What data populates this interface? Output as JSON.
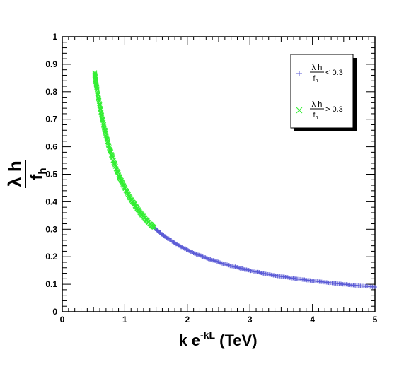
{
  "chart_data": {
    "type": "scatter",
    "xlabel": {
      "base": "k e",
      "sup": "-kL",
      "unit": " (TeV)"
    },
    "ylabel": {
      "top": "λ h",
      "bottom": "f",
      "sub": "h"
    },
    "xlim": [
      0,
      5
    ],
    "ylim": [
      0,
      1
    ],
    "x_ticks": [
      "0",
      "1",
      "2",
      "3",
      "4",
      "5"
    ],
    "y_ticks": [
      "0",
      "0.1",
      "0.2",
      "0.3",
      "0.4",
      "0.5",
      "0.6",
      "0.7",
      "0.8",
      "0.9",
      "1"
    ],
    "grid": false,
    "legend_position": "top-right",
    "series": [
      {
        "label_top": "λ h",
        "label_bottom": "f",
        "label_sub": "h",
        "label_cond": "< 0.3",
        "marker": "plus",
        "color": "#5b5bd6",
        "x_range": [
          1.47,
          5.0
        ],
        "points": 220
      },
      {
        "label_top": "λ h",
        "label_bottom": "f",
        "label_sub": "h",
        "label_cond": "> 0.3",
        "marker": "cross",
        "color": "#33ee33",
        "x_range": [
          0.52,
          1.47
        ],
        "points": 260
      }
    ],
    "curve": {
      "form": "y = a / x",
      "a": 0.45
    }
  }
}
